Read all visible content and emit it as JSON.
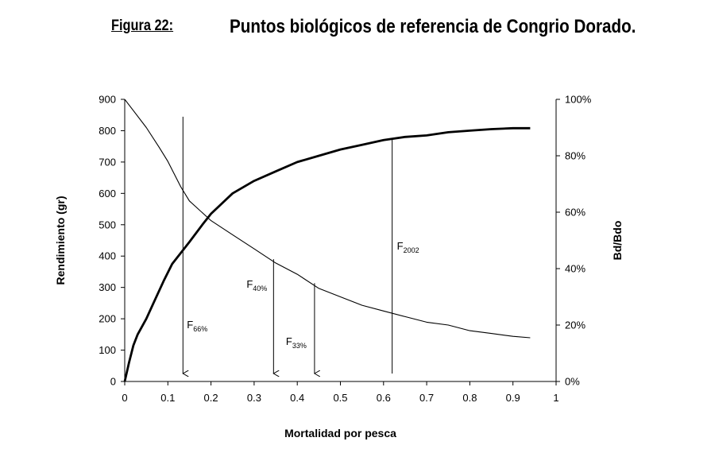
{
  "figure": {
    "label": "Figura 22:",
    "title": "Puntos biológicos de referencia de Congrio Dorado."
  },
  "chart_data": {
    "type": "line",
    "xlabel": "Mortalidad por pesca",
    "ylabel_left": "Rendimiento (gr)",
    "ylabel_right": "Bd/Bdo",
    "xlim": [
      0,
      1
    ],
    "ylim_left": [
      0,
      900
    ],
    "ylim_right": [
      0,
      100
    ],
    "x_ticks": [
      "0",
      "0.1",
      "0.2",
      "0.3",
      "0.4",
      "0.5",
      "0.6",
      "0.7",
      "0.8",
      "0.9",
      "1"
    ],
    "y_left_ticks": [
      "0",
      "100",
      "200",
      "300",
      "400",
      "500",
      "600",
      "700",
      "800",
      "900"
    ],
    "y_right_ticks": [
      "0%",
      "20%",
      "40%",
      "60%",
      "80%",
      "100%"
    ],
    "grid": false,
    "legend": "none",
    "series": [
      {
        "axis": "left",
        "style": "thick",
        "x": [
          0,
          0.01,
          0.02,
          0.03,
          0.05,
          0.07,
          0.09,
          0.11,
          0.13,
          0.15,
          0.18,
          0.2,
          0.25,
          0.3,
          0.35,
          0.4,
          0.45,
          0.5,
          0.55,
          0.6,
          0.65,
          0.7,
          0.75,
          0.8,
          0.85,
          0.9,
          0.94
        ],
        "y": [
          0,
          60,
          115,
          150,
          200,
          260,
          320,
          375,
          410,
          445,
          500,
          535,
          600,
          640,
          670,
          700,
          720,
          740,
          755,
          770,
          780,
          785,
          795,
          800,
          805,
          808,
          808
        ]
      },
      {
        "axis": "right",
        "style": "thin",
        "x": [
          0,
          0.02,
          0.05,
          0.08,
          0.1,
          0.13,
          0.15,
          0.2,
          0.25,
          0.3,
          0.35,
          0.4,
          0.45,
          0.5,
          0.55,
          0.6,
          0.65,
          0.7,
          0.75,
          0.8,
          0.85,
          0.9,
          0.94
        ],
        "y": [
          100,
          96,
          90,
          83,
          78,
          69,
          64,
          57,
          52,
          47,
          42,
          38,
          33,
          30,
          27,
          25,
          23,
          21,
          20,
          18,
          17,
          16,
          15.5
        ]
      }
    ],
    "reference_points": [
      {
        "label": "F",
        "sub": "66%",
        "x": 0.135,
        "arrow": true
      },
      {
        "label": "F",
        "sub": "40%",
        "x": 0.345,
        "arrow": true
      },
      {
        "label": "F",
        "sub": "33%",
        "x": 0.44,
        "arrow": true
      },
      {
        "label": "F",
        "sub": "2002",
        "x": 0.62,
        "arrow": false
      }
    ]
  }
}
